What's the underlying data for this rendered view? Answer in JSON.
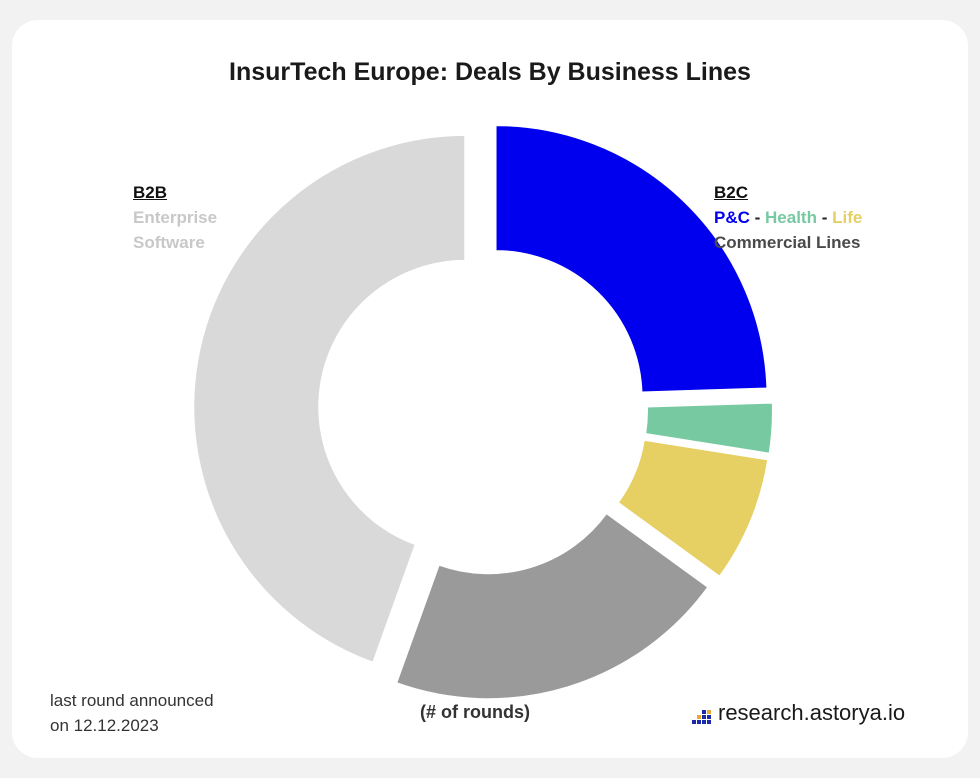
{
  "title": "InsurTech Europe: Deals By Business Lines",
  "legend_left": {
    "head": "B2B",
    "line1": "Enterprise",
    "line2": "Software"
  },
  "legend_right": {
    "head": "B2C",
    "pc": "P&C",
    "sep1": " - ",
    "health": "Health",
    "sep2": " - ",
    "life": "Life",
    "commercial": "Commercial Lines"
  },
  "footnote": {
    "line1": "last round announced",
    "line2": "on 12.12.2023"
  },
  "unit_label": "(# of rounds)",
  "brand": "research.astorya.io",
  "colors": {
    "pc": "#0000ee",
    "health": "#77c9a1",
    "life": "#e6cf63",
    "commercial": "#9a9a9a",
    "enterprise": "#d9d9d9"
  },
  "chart_data": {
    "type": "pie",
    "variant": "donut",
    "title": "InsurTech Europe: Deals By Business Lines",
    "slices": [
      {
        "label": "P&C",
        "group": "B2C",
        "value": 24.5,
        "color": "#0000ee"
      },
      {
        "label": "Health",
        "group": "B2C",
        "value": 3.0,
        "color": "#77c9a1"
      },
      {
        "label": "Life",
        "group": "B2C",
        "value": 7.5,
        "color": "#e6cf63"
      },
      {
        "label": "Commercial Lines",
        "group": "B2C",
        "value": 20.5,
        "color": "#9a9a9a"
      },
      {
        "label": "Enterprise Software",
        "group": "B2B",
        "value": 44.5,
        "color": "#d9d9d9"
      }
    ]
  }
}
